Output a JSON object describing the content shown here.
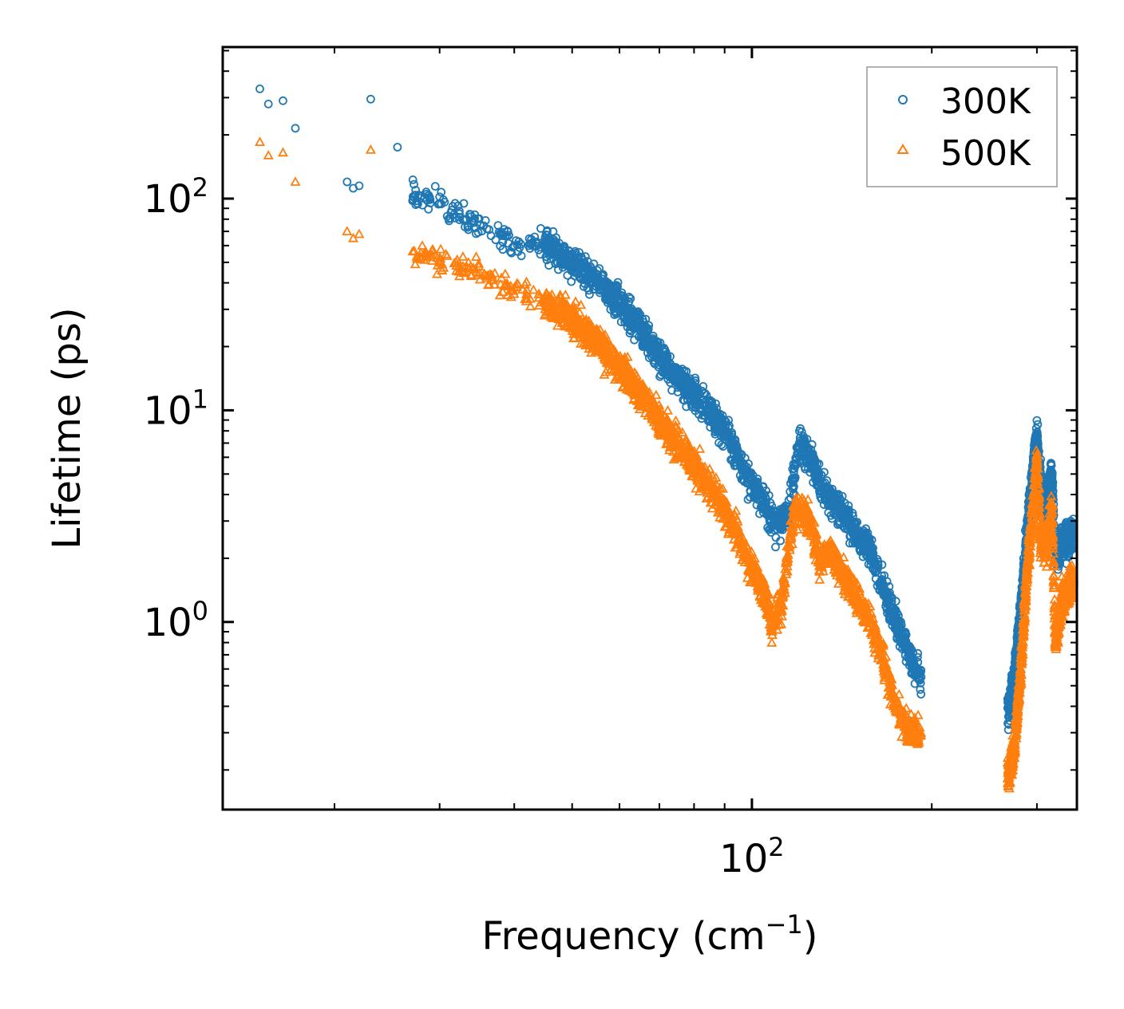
{
  "chart_data": {
    "type": "scatter",
    "title": "",
    "xlabel": "Frequency",
    "xlabel_unit_base": "cm",
    "xlabel_unit_exp": "−1",
    "ylabel": "Lifetime (ps)",
    "x_scale": "log",
    "y_scale": "log",
    "xlim": [
      13,
      350
    ],
    "ylim": [
      0.13,
      520
    ],
    "x_major_ticks": [
      {
        "value": 100,
        "base": "10",
        "exp": "2"
      }
    ],
    "y_major_ticks": [
      {
        "value": 1,
        "base": "10",
        "exp": "0"
      },
      {
        "value": 10,
        "base": "10",
        "exp": "1"
      },
      {
        "value": 100,
        "base": "10",
        "exp": "2"
      }
    ],
    "legend_position": "top-right",
    "series": [
      {
        "name": "300K",
        "marker": "circle",
        "color": "#1f77b4",
        "anchor_points": [
          [
            15.0,
            330
          ],
          [
            15.5,
            280
          ],
          [
            16.4,
            290
          ],
          [
            17.2,
            215
          ],
          [
            21.0,
            120
          ],
          [
            21.5,
            112
          ],
          [
            22.0,
            115
          ],
          [
            23.0,
            295
          ],
          [
            25.5,
            175
          ],
          [
            27.5,
            95
          ],
          [
            28.5,
            105
          ],
          [
            30,
            95
          ],
          [
            33,
            80
          ],
          [
            36,
            72
          ],
          [
            40,
            60
          ],
          [
            45,
            62
          ],
          [
            50,
            50
          ],
          [
            55,
            42
          ],
          [
            60,
            32
          ],
          [
            65,
            25
          ],
          [
            70,
            18
          ],
          [
            75,
            14
          ],
          [
            80,
            12
          ],
          [
            85,
            10
          ],
          [
            90,
            8
          ],
          [
            95,
            6
          ],
          [
            100,
            4.5
          ],
          [
            105,
            3.5
          ],
          [
            110,
            2.9
          ],
          [
            115,
            3.2
          ],
          [
            120,
            7
          ],
          [
            125,
            6
          ],
          [
            130,
            4.5
          ],
          [
            135,
            3.8
          ],
          [
            140,
            3.5
          ],
          [
            145,
            3
          ],
          [
            150,
            2.6
          ],
          [
            158,
            2.2
          ],
          [
            165,
            1.5
          ],
          [
            172,
            1.1
          ],
          [
            180,
            0.8
          ],
          [
            188,
            0.6
          ],
          [
            192,
            0.55
          ],
          [
            270,
            0.4
          ],
          [
            275,
            0.55
          ],
          [
            282,
            1.2
          ],
          [
            290,
            3
          ],
          [
            297,
            6
          ],
          [
            300,
            7.5
          ],
          [
            304,
            4.5
          ],
          [
            310,
            3.5
          ],
          [
            318,
            5
          ],
          [
            322,
            2
          ],
          [
            330,
            2.4
          ],
          [
            340,
            2.5
          ],
          [
            345,
            2.6
          ]
        ]
      },
      {
        "name": "500K",
        "marker": "triangle",
        "color": "#ff7f0e",
        "anchor_points": [
          [
            15.0,
            185
          ],
          [
            15.5,
            160
          ],
          [
            16.4,
            165
          ],
          [
            17.2,
            120
          ],
          [
            21.0,
            70
          ],
          [
            21.5,
            65
          ],
          [
            22.0,
            68
          ],
          [
            23.0,
            170
          ],
          [
            27.5,
            52
          ],
          [
            28.5,
            55
          ],
          [
            30,
            50
          ],
          [
            33,
            47
          ],
          [
            36,
            43
          ],
          [
            40,
            38
          ],
          [
            45,
            33
          ],
          [
            50,
            27
          ],
          [
            55,
            21
          ],
          [
            60,
            16
          ],
          [
            65,
            12
          ],
          [
            70,
            9
          ],
          [
            75,
            7
          ],
          [
            80,
            5.5
          ],
          [
            85,
            4.5
          ],
          [
            90,
            3.4
          ],
          [
            95,
            2.5
          ],
          [
            100,
            1.8
          ],
          [
            105,
            1.4
          ],
          [
            108,
            0.95
          ],
          [
            112,
            1.2
          ],
          [
            118,
            3.5
          ],
          [
            125,
            3
          ],
          [
            130,
            2
          ],
          [
            135,
            2.2
          ],
          [
            140,
            1.8
          ],
          [
            150,
            1.3
          ],
          [
            158,
            1
          ],
          [
            165,
            0.7
          ],
          [
            172,
            0.45
          ],
          [
            180,
            0.32
          ],
          [
            188,
            0.3
          ],
          [
            270,
            0.2
          ],
          [
            275,
            0.25
          ],
          [
            282,
            0.6
          ],
          [
            290,
            2
          ],
          [
            297,
            4
          ],
          [
            300,
            6
          ],
          [
            304,
            2.5
          ],
          [
            310,
            2.2
          ],
          [
            318,
            3.5
          ],
          [
            322,
            0.8
          ],
          [
            330,
            1.2
          ],
          [
            340,
            1.5
          ],
          [
            345,
            1.6
          ]
        ]
      }
    ]
  }
}
